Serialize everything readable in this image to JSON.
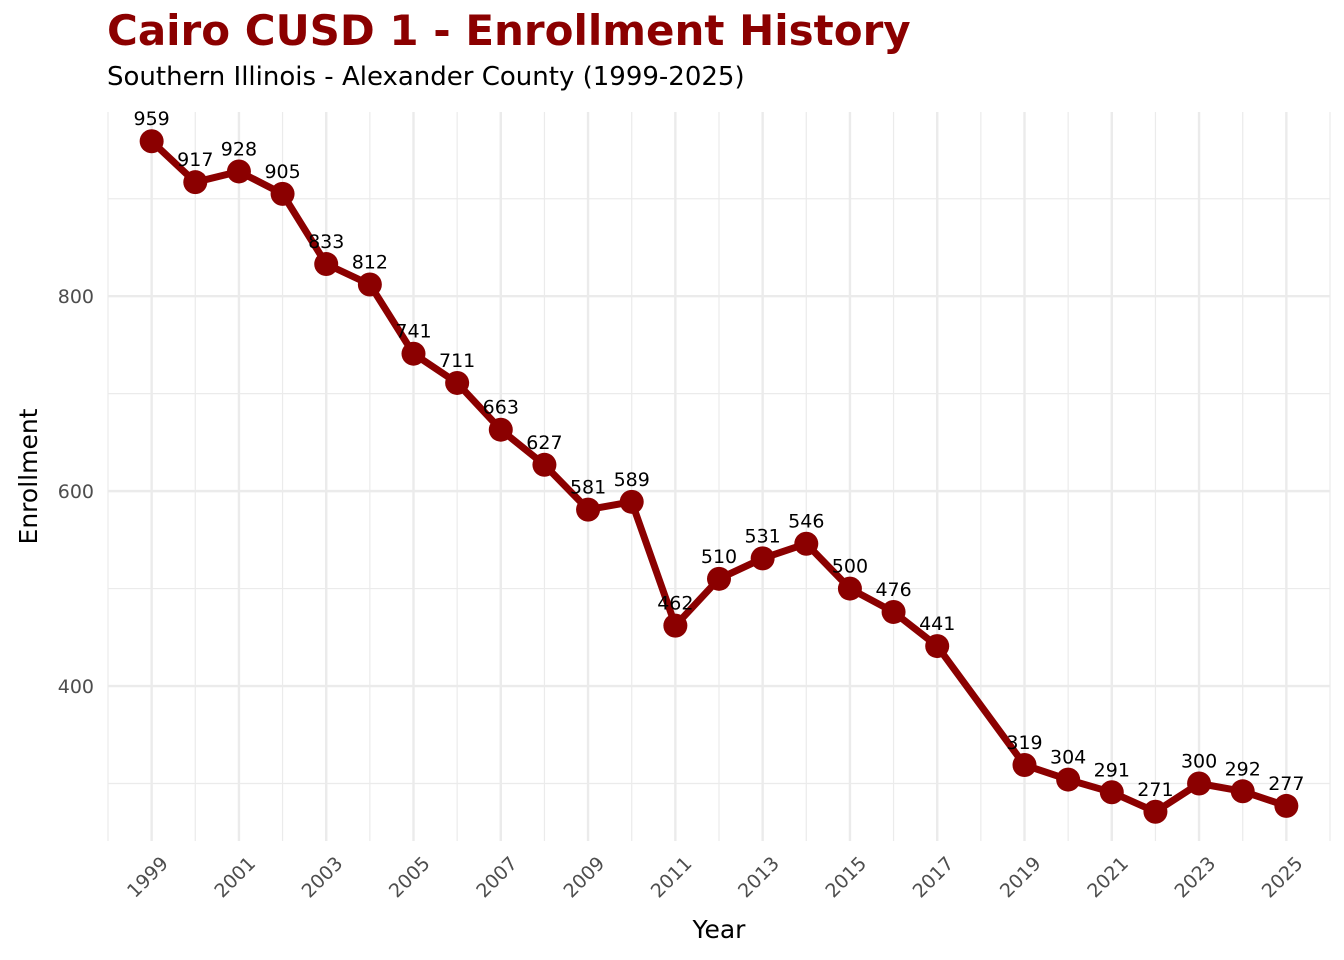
{
  "chart_data": {
    "type": "line",
    "title": "Cairo CUSD 1 - Enrollment History",
    "subtitle": "Southern Illinois - Alexander County (1999-2025)",
    "xlabel": "Year",
    "ylabel": "Enrollment",
    "x": [
      1999,
      2000,
      2001,
      2002,
      2003,
      2004,
      2005,
      2006,
      2007,
      2008,
      2009,
      2010,
      2011,
      2012,
      2013,
      2014,
      2015,
      2016,
      2017,
      2019,
      2020,
      2021,
      2022,
      2023,
      2024,
      2025
    ],
    "series": [
      {
        "values": [
          959,
          917,
          928,
          905,
          833,
          812,
          741,
          711,
          663,
          627,
          581,
          589,
          462,
          510,
          531,
          546,
          500,
          476,
          441,
          319,
          304,
          291,
          271,
          300,
          292,
          277
        ]
      }
    ],
    "x_tick_labels": [
      "1999",
      "2001",
      "2003",
      "2005",
      "2007",
      "2009",
      "2011",
      "2013",
      "2015",
      "2017",
      "2019",
      "2021",
      "2023",
      "2025"
    ],
    "y_tick_labels": [
      "400",
      "600",
      "800"
    ],
    "xlim": [
      1998,
      2026
    ],
    "ylim": [
      241,
      989
    ],
    "y_ticks": [
      400,
      600,
      800
    ],
    "y_minor_ticks": [
      300,
      500,
      700,
      900
    ],
    "data_labels": true,
    "grid": true,
    "legend": "none",
    "colors": {
      "line": "#8B0000",
      "title": "#8B0000",
      "grid": "#ebebeb"
    }
  }
}
